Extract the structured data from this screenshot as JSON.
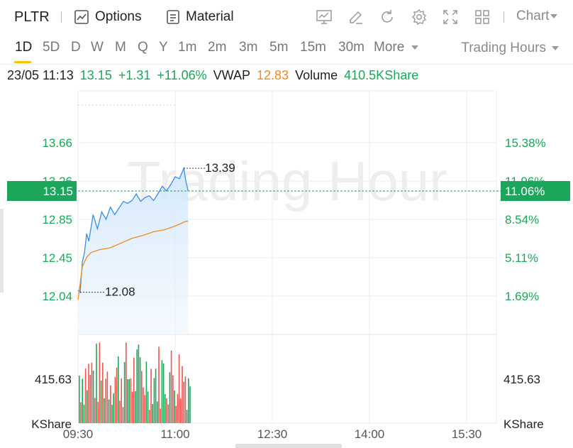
{
  "toolbar": {
    "symbol": "PLTR",
    "options_label": "Options",
    "material_label": "Material",
    "chart_label": "Chart",
    "icons": [
      "chart-icon",
      "draw-icon",
      "refresh-icon",
      "settings-icon",
      "fullscreen-icon",
      "layout-icon"
    ]
  },
  "periods": {
    "items": [
      "1D",
      "5D",
      "D",
      "W",
      "M",
      "Q",
      "Y",
      "1m",
      "2m",
      "3m",
      "5m",
      "15m",
      "30m",
      "More"
    ],
    "active": "1D",
    "trading_hours_label": "Trading Hours"
  },
  "info": {
    "datetime": "23/05 11:13",
    "price": "13.15",
    "change": "+1.31",
    "change_pct": "+11.06%",
    "vwap_label": "VWAP",
    "vwap": "12.83",
    "volume_label": "Volume",
    "volume": "410.5KShare"
  },
  "chart": {
    "watermark": "Trading Hour",
    "left_ticks": [
      "13.66",
      "13.26",
      "12.85",
      "12.45",
      "12.04"
    ],
    "right_ticks": [
      "15.38%",
      "11.96%",
      "8.54%",
      "5.11%",
      "1.69%"
    ],
    "current_price_tag": "13.15",
    "current_pct_tag": "11.06%",
    "high_label": "13.39",
    "low_label": "12.08",
    "volume_tick": "415.63",
    "volume_unit": "KShare",
    "x_ticks": [
      "09:30",
      "11:00",
      "12:30",
      "14:00",
      "15:30"
    ],
    "colors": {
      "up": "#1ca65b",
      "down": "#ef5350",
      "line": "#3a8ee6",
      "vwap": "#f08a1a"
    }
  },
  "chart_data": {
    "type": "line",
    "title": "",
    "ylim": [
      12.04,
      13.66
    ],
    "x_ticks": [
      "09:30",
      "11:00",
      "12:30",
      "14:00",
      "15:30"
    ],
    "series": [
      {
        "name": "",
        "x_minutes_from_open": [
          0,
          2,
          4,
          6,
          8,
          10,
          14,
          18,
          22,
          26,
          30,
          34,
          38,
          42,
          46,
          50,
          54,
          58,
          62,
          66,
          70,
          74,
          78,
          82,
          86,
          90,
          94,
          98,
          100,
          102
        ],
        "values": [
          12.1,
          12.08,
          12.4,
          12.5,
          12.7,
          12.62,
          12.9,
          12.75,
          12.93,
          12.85,
          12.98,
          12.9,
          12.97,
          13.04,
          13.02,
          13.05,
          13.12,
          13.04,
          13.08,
          13.1,
          13.05,
          13.12,
          13.2,
          13.15,
          13.22,
          13.3,
          13.28,
          13.39,
          13.25,
          13.15
        ]
      },
      {
        "name": "VWAP",
        "x_minutes_from_open": [
          0,
          4,
          8,
          12,
          20,
          30,
          40,
          50,
          60,
          70,
          80,
          90,
          100,
          102
        ],
        "values": [
          12.0,
          12.35,
          12.45,
          12.5,
          12.53,
          12.55,
          12.6,
          12.65,
          12.68,
          12.72,
          12.74,
          12.78,
          12.83,
          12.83
        ]
      }
    ],
    "volume_max": 415.63,
    "volume_unit": "KShare"
  }
}
